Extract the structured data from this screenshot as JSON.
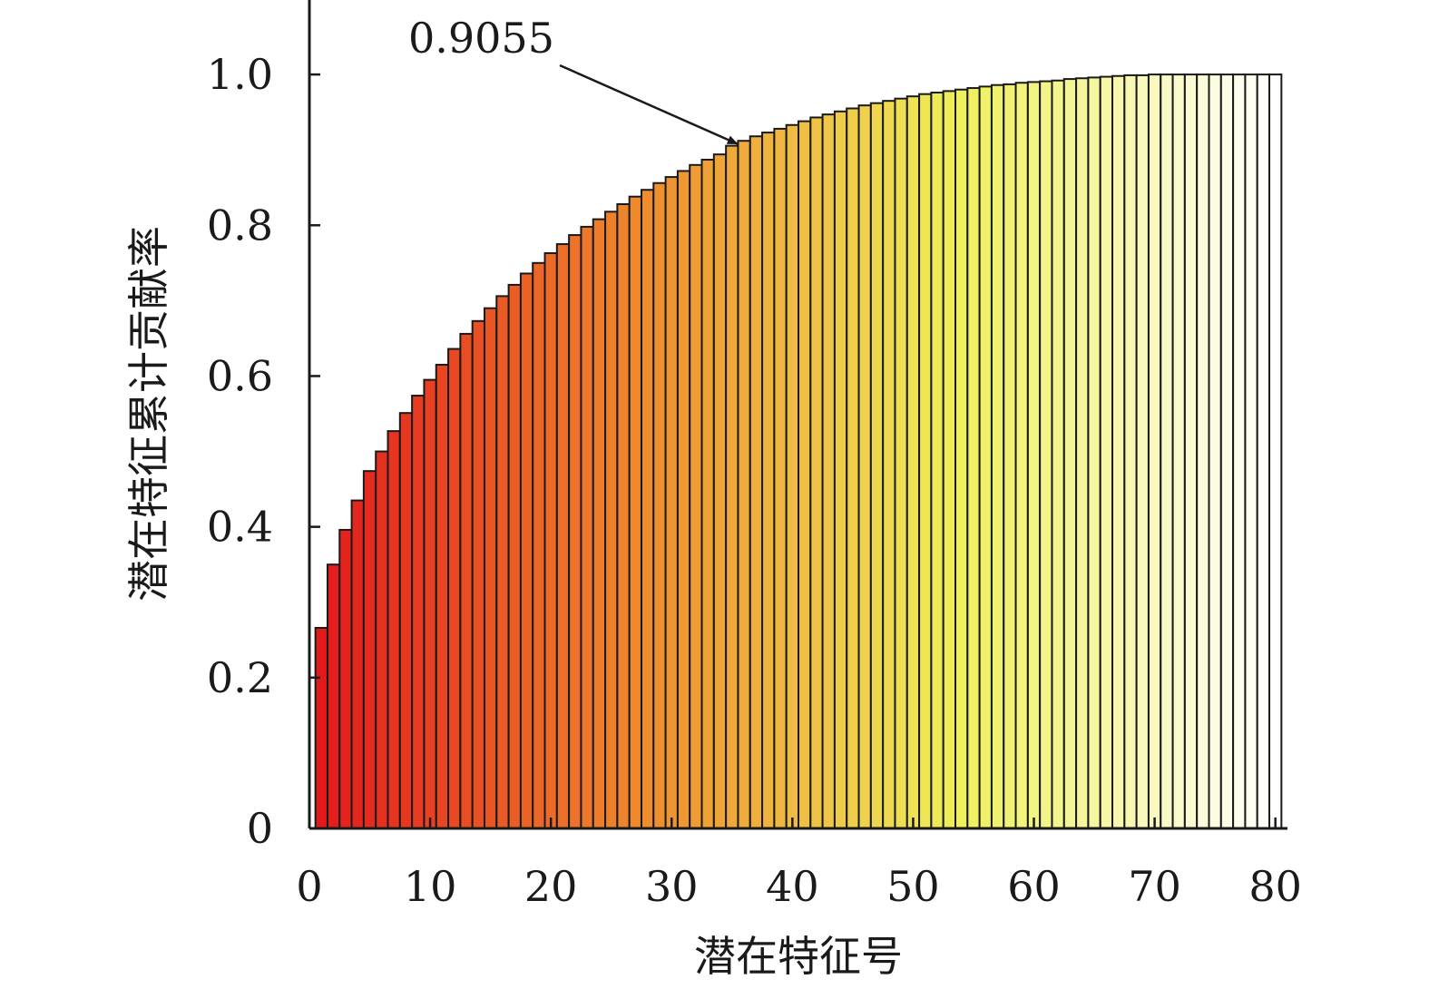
{
  "chart_data": {
    "type": "bar",
    "xlabel": "潜在特征号",
    "ylabel": "潜在特征累计贡献率",
    "xlim": [
      0,
      81
    ],
    "ylim": [
      0,
      1.1
    ],
    "xticks": [
      0,
      10,
      20,
      30,
      40,
      50,
      60,
      70,
      80
    ],
    "yticks": [
      0,
      0.2,
      0.4,
      0.6,
      0.8,
      1.0
    ],
    "ytick_labels": [
      "0",
      "0.2",
      "0.4",
      "0.6",
      "0.8",
      "1.0"
    ],
    "color_gradient": [
      "#e31a1c",
      "#ef8a2d",
      "#eef05a",
      "#ffffff"
    ],
    "annotation": {
      "text": "0.9055",
      "target_x": 35,
      "target_y": 0.9055
    },
    "x": [
      1,
      2,
      3,
      4,
      5,
      6,
      7,
      8,
      9,
      10,
      11,
      12,
      13,
      14,
      15,
      16,
      17,
      18,
      19,
      20,
      21,
      22,
      23,
      24,
      25,
      26,
      27,
      28,
      29,
      30,
      31,
      32,
      33,
      34,
      35,
      36,
      37,
      38,
      39,
      40,
      41,
      42,
      43,
      44,
      45,
      46,
      47,
      48,
      49,
      50,
      51,
      52,
      53,
      54,
      55,
      56,
      57,
      58,
      59,
      60,
      61,
      62,
      63,
      64,
      65,
      66,
      67,
      68,
      69,
      70,
      71,
      72,
      73,
      74,
      75,
      76,
      77,
      78,
      79,
      80
    ],
    "values": [
      0.266,
      0.35,
      0.396,
      0.435,
      0.474,
      0.5,
      0.527,
      0.551,
      0.574,
      0.595,
      0.615,
      0.636,
      0.656,
      0.673,
      0.69,
      0.706,
      0.721,
      0.736,
      0.75,
      0.763,
      0.775,
      0.787,
      0.798,
      0.808,
      0.818,
      0.828,
      0.838,
      0.847,
      0.856,
      0.864,
      0.872,
      0.88,
      0.887,
      0.894,
      0.9055,
      0.912,
      0.918,
      0.923,
      0.928,
      0.933,
      0.938,
      0.943,
      0.947,
      0.951,
      0.955,
      0.959,
      0.962,
      0.965,
      0.968,
      0.971,
      0.974,
      0.976,
      0.978,
      0.98,
      0.982,
      0.984,
      0.986,
      0.987,
      0.989,
      0.99,
      0.991,
      0.992,
      0.994,
      0.995,
      0.996,
      0.997,
      0.998,
      0.999,
      0.999,
      1.0,
      1.0,
      1.0,
      1.0,
      1.0,
      1.0,
      1.0,
      1.0,
      1.0,
      1.0,
      1.0
    ]
  }
}
